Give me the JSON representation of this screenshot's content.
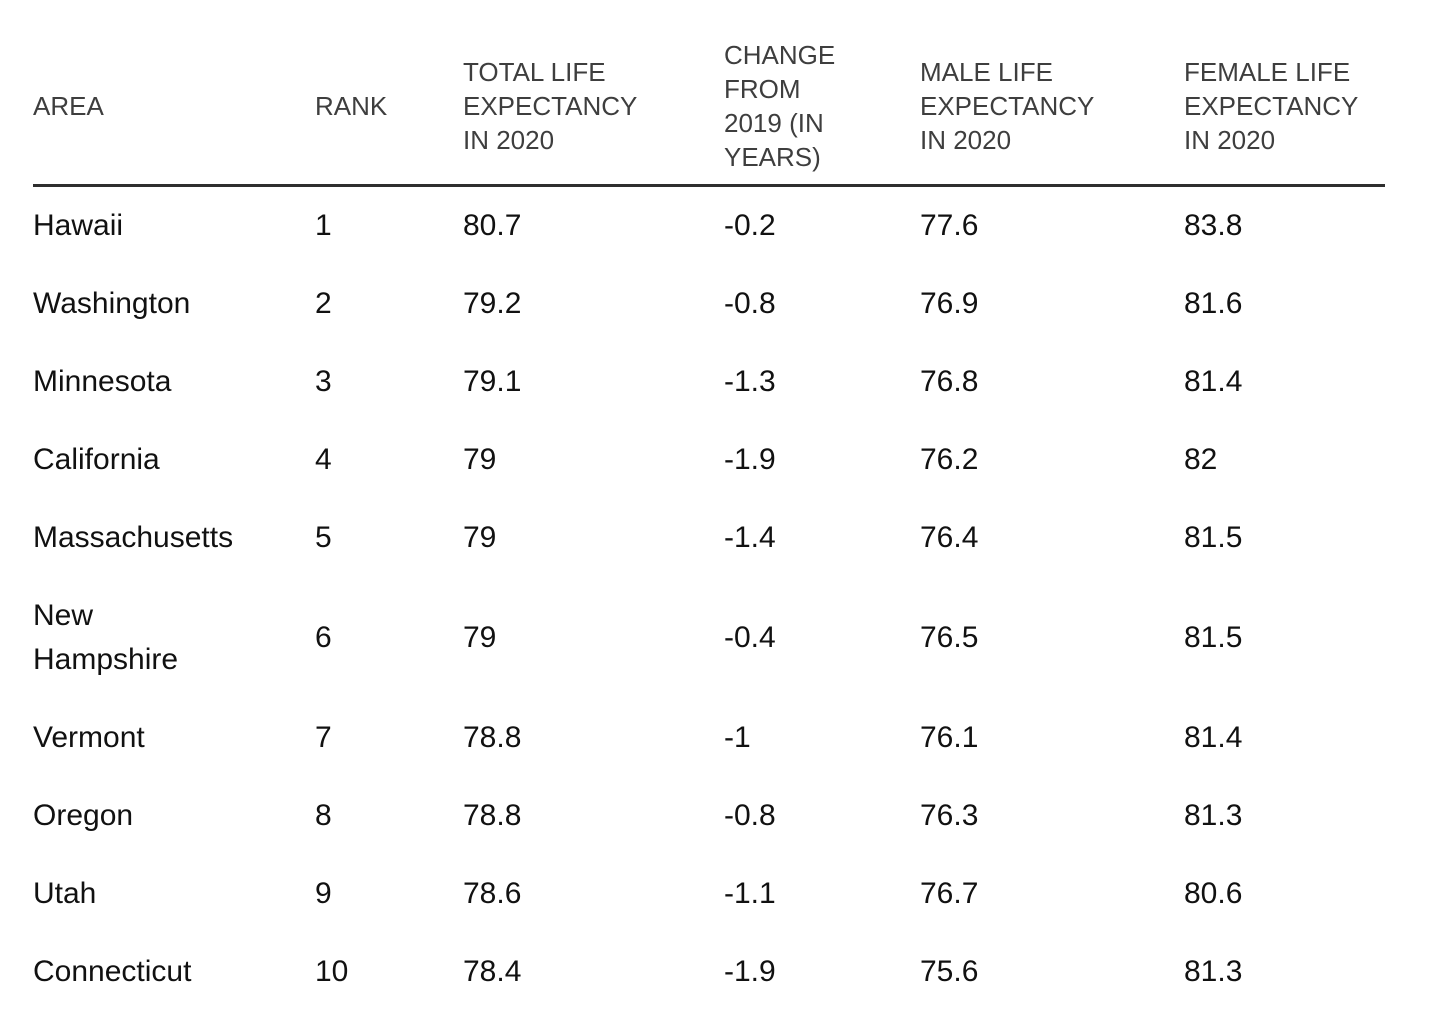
{
  "colors": {
    "background": "#ffffff",
    "body_text": "#111111",
    "header_text": "#3e3e3e",
    "header_rule": "#2e2e2e"
  },
  "chart_data": {
    "type": "table",
    "columns": [
      "AREA",
      "RANK",
      "TOTAL LIFE EXPECTANCY IN 2020",
      "CHANGE FROM 2019 (IN YEARS)",
      "MALE LIFE EXPECTANCY IN 2020",
      "FEMALE LIFE EXPECTANCY IN 2020"
    ],
    "rows": [
      [
        "Hawaii",
        "1",
        "80.7",
        "-0.2",
        "77.6",
        "83.8"
      ],
      [
        "Washington",
        "2",
        "79.2",
        "-0.8",
        "76.9",
        "81.6"
      ],
      [
        "Minnesota",
        "3",
        "79.1",
        "-1.3",
        "76.8",
        "81.4"
      ],
      [
        "California",
        "4",
        "79",
        "-1.9",
        "76.2",
        "82"
      ],
      [
        "Massachusetts",
        "5",
        "79",
        "-1.4",
        "76.4",
        "81.5"
      ],
      [
        "New Hampshire",
        "6",
        "79",
        "-0.4",
        "76.5",
        "81.5"
      ],
      [
        "Vermont",
        "7",
        "78.8",
        "-1",
        "76.1",
        "81.4"
      ],
      [
        "Oregon",
        "8",
        "78.8",
        "-0.8",
        "76.3",
        "81.3"
      ],
      [
        "Utah",
        "9",
        "78.6",
        "-1.1",
        "76.7",
        "80.6"
      ],
      [
        "Connecticut",
        "10",
        "78.4",
        "-1.9",
        "75.6",
        "81.3"
      ]
    ]
  }
}
